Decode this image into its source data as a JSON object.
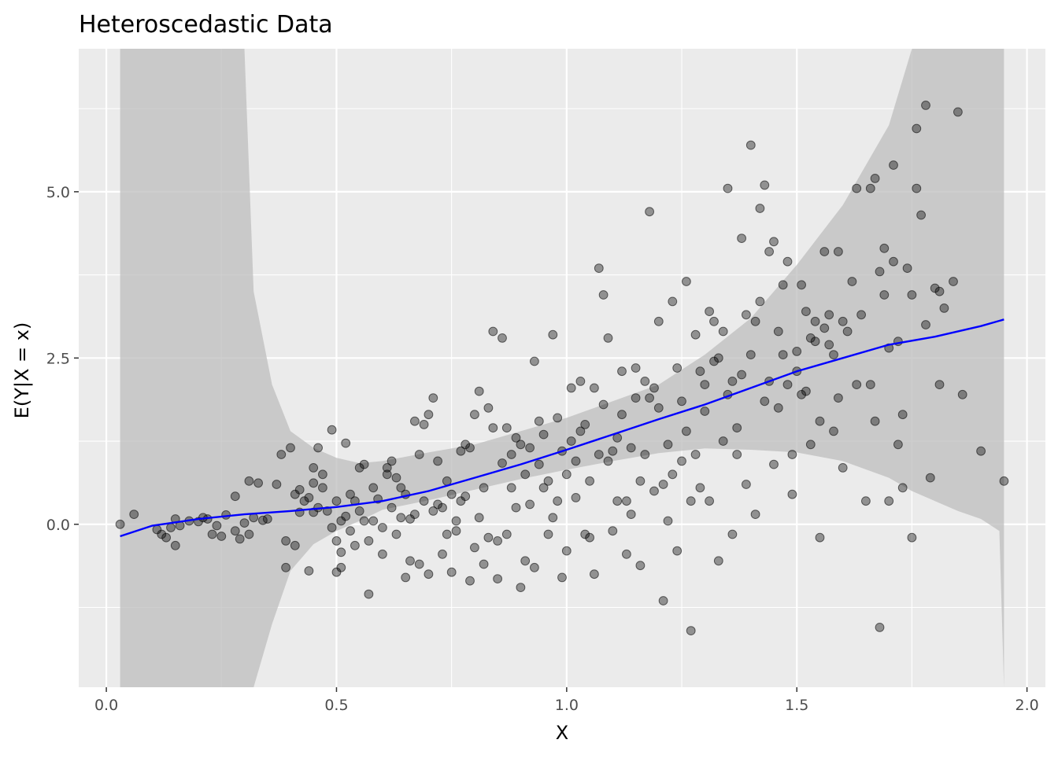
{
  "chart_data": {
    "type": "scatter",
    "title": "Heteroscedastic Data",
    "xlabel": "X",
    "ylabel": "E(Y|X = x)",
    "xlim": [
      -0.06,
      2.04
    ],
    "ylim": [
      -2.45,
      7.15
    ],
    "grid": true,
    "x_ticks": [
      0.0,
      0.5,
      1.0,
      1.5,
      2.0
    ],
    "x_tick_labels": [
      "0.0",
      "0.5",
      "1.0",
      "1.5",
      "2.0"
    ],
    "y_ticks": [
      0.0,
      2.5,
      5.0
    ],
    "y_tick_labels": [
      "0.0",
      "2.5",
      "5.0"
    ],
    "colors": {
      "panel_background": "#EBEBEB",
      "grid": "#FFFFFF",
      "points": "#000000",
      "fit_line": "#0000FF",
      "ribbon": "#BEBEBE"
    },
    "smooth_fit": {
      "x": [
        0.03,
        0.1,
        0.2,
        0.3,
        0.4,
        0.5,
        0.6,
        0.7,
        0.8,
        0.9,
        1.0,
        1.1,
        1.2,
        1.3,
        1.4,
        1.5,
        1.6,
        1.7,
        1.8,
        1.9,
        1.95
      ],
      "y": [
        -0.18,
        -0.02,
        0.08,
        0.15,
        0.2,
        0.26,
        0.35,
        0.5,
        0.7,
        0.9,
        1.12,
        1.35,
        1.58,
        1.8,
        2.05,
        2.3,
        2.5,
        2.7,
        2.82,
        2.98,
        3.08
      ]
    },
    "confidence_band": {
      "x": [
        0.03,
        0.1,
        0.2,
        0.25,
        0.28,
        0.3,
        0.32,
        0.36,
        0.4,
        0.45,
        0.5,
        0.55,
        0.6,
        0.7,
        0.8,
        0.9,
        1.0,
        1.1,
        1.2,
        1.3,
        1.4,
        1.5,
        1.6,
        1.7,
        1.75,
        1.8,
        1.85,
        1.9,
        1.94,
        1.95
      ],
      "lower": [
        -2.45,
        -2.45,
        -2.45,
        -2.45,
        -2.45,
        -2.45,
        -2.45,
        -1.5,
        -0.7,
        -0.3,
        -0.1,
        0.05,
        0.22,
        0.36,
        0.52,
        0.68,
        0.82,
        0.95,
        1.07,
        1.14,
        1.12,
        1.08,
        0.95,
        0.7,
        0.5,
        0.35,
        0.2,
        0.08,
        -0.1,
        -2.45
      ],
      "upper": [
        7.15,
        7.15,
        7.15,
        7.15,
        7.15,
        7.15,
        3.5,
        2.1,
        1.4,
        1.15,
        1.0,
        0.92,
        0.95,
        1.08,
        1.2,
        1.4,
        1.6,
        1.85,
        2.1,
        2.55,
        3.1,
        3.9,
        4.8,
        6.0,
        7.15,
        7.15,
        7.15,
        7.15,
        7.15,
        7.15
      ]
    },
    "points": [
      [
        0.03,
        0.0
      ],
      [
        0.06,
        0.15
      ],
      [
        0.11,
        -0.08
      ],
      [
        0.12,
        -0.15
      ],
      [
        0.13,
        -0.2
      ],
      [
        0.14,
        -0.05
      ],
      [
        0.15,
        0.08
      ],
      [
        0.15,
        -0.32
      ],
      [
        0.16,
        -0.02
      ],
      [
        0.18,
        0.05
      ],
      [
        0.2,
        0.04
      ],
      [
        0.21,
        0.1
      ],
      [
        0.22,
        0.08
      ],
      [
        0.23,
        -0.15
      ],
      [
        0.24,
        -0.02
      ],
      [
        0.25,
        -0.18
      ],
      [
        0.26,
        0.14
      ],
      [
        0.28,
        -0.1
      ],
      [
        0.28,
        0.42
      ],
      [
        0.29,
        -0.22
      ],
      [
        0.3,
        0.02
      ],
      [
        0.31,
        -0.15
      ],
      [
        0.32,
        0.1
      ],
      [
        0.31,
        0.65
      ],
      [
        0.33,
        0.62
      ],
      [
        0.34,
        0.06
      ],
      [
        0.35,
        0.08
      ],
      [
        0.37,
        0.6
      ],
      [
        0.38,
        1.05
      ],
      [
        0.39,
        -0.25
      ],
      [
        0.39,
        -0.65
      ],
      [
        0.4,
        1.15
      ],
      [
        0.41,
        -0.32
      ],
      [
        0.41,
        0.45
      ],
      [
        0.42,
        0.18
      ],
      [
        0.42,
        0.52
      ],
      [
        0.43,
        0.35
      ],
      [
        0.44,
        0.4
      ],
      [
        0.44,
        -0.7
      ],
      [
        0.45,
        0.62
      ],
      [
        0.45,
        0.18
      ],
      [
        0.45,
        0.85
      ],
      [
        0.46,
        0.25
      ],
      [
        0.46,
        1.15
      ],
      [
        0.47,
        0.55
      ],
      [
        0.47,
        0.75
      ],
      [
        0.48,
        0.2
      ],
      [
        0.49,
        1.42
      ],
      [
        0.49,
        -0.05
      ],
      [
        0.5,
        0.35
      ],
      [
        0.5,
        -0.25
      ],
      [
        0.5,
        -0.72
      ],
      [
        0.51,
        0.05
      ],
      [
        0.51,
        -0.65
      ],
      [
        0.51,
        -0.42
      ],
      [
        0.52,
        0.12
      ],
      [
        0.52,
        1.22
      ],
      [
        0.53,
        0.45
      ],
      [
        0.53,
        -0.1
      ],
      [
        0.54,
        0.35
      ],
      [
        0.54,
        -0.32
      ],
      [
        0.55,
        0.85
      ],
      [
        0.55,
        0.2
      ],
      [
        0.56,
        0.05
      ],
      [
        0.56,
        0.9
      ],
      [
        0.57,
        -0.25
      ],
      [
        0.57,
        -1.05
      ],
      [
        0.58,
        0.05
      ],
      [
        0.58,
        0.55
      ],
      [
        0.59,
        0.38
      ],
      [
        0.6,
        -0.05
      ],
      [
        0.6,
        -0.45
      ],
      [
        0.61,
        0.85
      ],
      [
        0.61,
        0.75
      ],
      [
        0.62,
        0.25
      ],
      [
        0.62,
        0.95
      ],
      [
        0.63,
        0.7
      ],
      [
        0.63,
        -0.15
      ],
      [
        0.64,
        0.1
      ],
      [
        0.64,
        0.55
      ],
      [
        0.65,
        -0.8
      ],
      [
        0.65,
        0.45
      ],
      [
        0.66,
        0.08
      ],
      [
        0.66,
        -0.55
      ],
      [
        0.67,
        1.55
      ],
      [
        0.67,
        0.15
      ],
      [
        0.68,
        1.05
      ],
      [
        0.68,
        -0.6
      ],
      [
        0.69,
        0.35
      ],
      [
        0.69,
        1.5
      ],
      [
        0.7,
        1.65
      ],
      [
        0.7,
        -0.75
      ],
      [
        0.71,
        0.2
      ],
      [
        0.71,
        1.9
      ],
      [
        0.72,
        0.3
      ],
      [
        0.72,
        0.95
      ],
      [
        0.73,
        0.25
      ],
      [
        0.73,
        -0.45
      ],
      [
        0.74,
        -0.15
      ],
      [
        0.74,
        0.65
      ],
      [
        0.75,
        0.45
      ],
      [
        0.75,
        -0.72
      ],
      [
        0.76,
        0.05
      ],
      [
        0.76,
        -0.1
      ],
      [
        0.77,
        0.35
      ],
      [
        0.77,
        1.1
      ],
      [
        0.78,
        0.42
      ],
      [
        0.78,
        1.2
      ],
      [
        0.79,
        1.15
      ],
      [
        0.79,
        -0.85
      ],
      [
        0.8,
        1.65
      ],
      [
        0.8,
        -0.35
      ],
      [
        0.81,
        0.1
      ],
      [
        0.81,
        2.0
      ],
      [
        0.82,
        0.55
      ],
      [
        0.82,
        -0.6
      ],
      [
        0.83,
        -0.2
      ],
      [
        0.83,
        1.75
      ],
      [
        0.84,
        2.9
      ],
      [
        0.84,
        1.45
      ],
      [
        0.85,
        -0.82
      ],
      [
        0.85,
        -0.25
      ],
      [
        0.86,
        0.92
      ],
      [
        0.86,
        2.8
      ],
      [
        0.87,
        -0.15
      ],
      [
        0.87,
        1.45
      ],
      [
        0.88,
        0.55
      ],
      [
        0.88,
        1.05
      ],
      [
        0.89,
        1.3
      ],
      [
        0.89,
        0.25
      ],
      [
        0.9,
        -0.95
      ],
      [
        0.9,
        1.2
      ],
      [
        0.91,
        0.75
      ],
      [
        0.91,
        -0.55
      ],
      [
        0.92,
        1.15
      ],
      [
        0.92,
        0.3
      ],
      [
        0.93,
        2.45
      ],
      [
        0.93,
        -0.65
      ],
      [
        0.94,
        0.9
      ],
      [
        0.94,
        1.55
      ],
      [
        0.95,
        1.35
      ],
      [
        0.95,
        0.55
      ],
      [
        0.96,
        0.65
      ],
      [
        0.96,
        -0.15
      ],
      [
        0.97,
        0.1
      ],
      [
        0.97,
        2.85
      ],
      [
        0.98,
        1.6
      ],
      [
        0.98,
        0.35
      ],
      [
        0.99,
        1.1
      ],
      [
        0.99,
        -0.8
      ],
      [
        1.0,
        0.75
      ],
      [
        1.0,
        -0.4
      ],
      [
        1.01,
        1.25
      ],
      [
        1.01,
        2.05
      ],
      [
        1.02,
        0.4
      ],
      [
        1.02,
        0.95
      ],
      [
        1.03,
        2.15
      ],
      [
        1.03,
        1.4
      ],
      [
        1.04,
        1.5
      ],
      [
        1.04,
        -0.15
      ],
      [
        1.05,
        0.65
      ],
      [
        1.05,
        -0.2
      ],
      [
        1.06,
        2.05
      ],
      [
        1.06,
        -0.75
      ],
      [
        1.07,
        1.05
      ],
      [
        1.07,
        3.85
      ],
      [
        1.08,
        3.45
      ],
      [
        1.08,
        1.8
      ],
      [
        1.09,
        0.95
      ],
      [
        1.09,
        2.8
      ],
      [
        1.1,
        1.1
      ],
      [
        1.1,
        -0.1
      ],
      [
        1.11,
        1.3
      ],
      [
        1.11,
        0.35
      ],
      [
        1.12,
        2.3
      ],
      [
        1.12,
        1.65
      ],
      [
        1.13,
        0.35
      ],
      [
        1.13,
        -0.45
      ],
      [
        1.14,
        1.15
      ],
      [
        1.14,
        0.15
      ],
      [
        1.15,
        2.35
      ],
      [
        1.15,
        1.9
      ],
      [
        1.16,
        0.65
      ],
      [
        1.16,
        -0.62
      ],
      [
        1.17,
        2.15
      ],
      [
        1.17,
        1.05
      ],
      [
        1.18,
        1.9
      ],
      [
        1.18,
        4.7
      ],
      [
        1.19,
        2.05
      ],
      [
        1.19,
        0.5
      ],
      [
        1.2,
        1.75
      ],
      [
        1.2,
        3.05
      ],
      [
        1.21,
        0.6
      ],
      [
        1.21,
        -1.15
      ],
      [
        1.22,
        1.2
      ],
      [
        1.22,
        0.05
      ],
      [
        1.23,
        3.35
      ],
      [
        1.23,
        0.75
      ],
      [
        1.24,
        2.35
      ],
      [
        1.24,
        -0.4
      ],
      [
        1.25,
        1.85
      ],
      [
        1.25,
        0.95
      ],
      [
        1.26,
        3.65
      ],
      [
        1.26,
        1.4
      ],
      [
        1.27,
        0.35
      ],
      [
        1.27,
        -1.6
      ],
      [
        1.28,
        2.85
      ],
      [
        1.28,
        1.05
      ],
      [
        1.29,
        2.3
      ],
      [
        1.29,
        0.55
      ],
      [
        1.3,
        2.1
      ],
      [
        1.3,
        1.7
      ],
      [
        1.31,
        3.2
      ],
      [
        1.31,
        0.35
      ],
      [
        1.32,
        2.45
      ],
      [
        1.32,
        3.05
      ],
      [
        1.33,
        2.5
      ],
      [
        1.33,
        -0.55
      ],
      [
        1.34,
        2.9
      ],
      [
        1.34,
        1.25
      ],
      [
        1.35,
        1.95
      ],
      [
        1.35,
        5.05
      ],
      [
        1.36,
        2.15
      ],
      [
        1.36,
        -0.15
      ],
      [
        1.37,
        1.45
      ],
      [
        1.37,
        1.05
      ],
      [
        1.38,
        4.3
      ],
      [
        1.38,
        2.25
      ],
      [
        1.39,
        3.15
      ],
      [
        1.39,
        0.6
      ],
      [
        1.4,
        2.55
      ],
      [
        1.4,
        5.7
      ],
      [
        1.41,
        3.05
      ],
      [
        1.41,
        0.15
      ],
      [
        1.42,
        3.35
      ],
      [
        1.42,
        4.75
      ],
      [
        1.43,
        5.1
      ],
      [
        1.43,
        1.85
      ],
      [
        1.44,
        4.1
      ],
      [
        1.44,
        2.15
      ],
      [
        1.45,
        4.25
      ],
      [
        1.45,
        0.9
      ],
      [
        1.46,
        2.9
      ],
      [
        1.46,
        1.75
      ],
      [
        1.47,
        2.55
      ],
      [
        1.47,
        3.6
      ],
      [
        1.48,
        2.1
      ],
      [
        1.48,
        3.95
      ],
      [
        1.49,
        0.45
      ],
      [
        1.49,
        1.05
      ],
      [
        1.5,
        2.3
      ],
      [
        1.5,
        2.6
      ],
      [
        1.51,
        3.6
      ],
      [
        1.51,
        1.95
      ],
      [
        1.52,
        2.0
      ],
      [
        1.52,
        3.2
      ],
      [
        1.53,
        2.8
      ],
      [
        1.53,
        1.2
      ],
      [
        1.54,
        2.75
      ],
      [
        1.54,
        3.05
      ],
      [
        1.55,
        -0.2
      ],
      [
        1.55,
        1.55
      ],
      [
        1.56,
        2.95
      ],
      [
        1.56,
        4.1
      ],
      [
        1.57,
        2.7
      ],
      [
        1.57,
        3.15
      ],
      [
        1.58,
        1.4
      ],
      [
        1.58,
        2.55
      ],
      [
        1.59,
        4.1
      ],
      [
        1.59,
        1.9
      ],
      [
        1.6,
        3.05
      ],
      [
        1.6,
        0.85
      ],
      [
        1.61,
        2.9
      ],
      [
        1.62,
        3.65
      ],
      [
        1.63,
        2.1
      ],
      [
        1.63,
        5.05
      ],
      [
        1.64,
        3.15
      ],
      [
        1.65,
        0.35
      ],
      [
        1.66,
        2.1
      ],
      [
        1.66,
        5.05
      ],
      [
        1.67,
        5.2
      ],
      [
        1.67,
        1.55
      ],
      [
        1.68,
        3.8
      ],
      [
        1.68,
        -1.55
      ],
      [
        1.69,
        4.15
      ],
      [
        1.69,
        3.45
      ],
      [
        1.7,
        2.65
      ],
      [
        1.7,
        0.35
      ],
      [
        1.71,
        3.95
      ],
      [
        1.71,
        5.4
      ],
      [
        1.72,
        2.75
      ],
      [
        1.72,
        1.2
      ],
      [
        1.73,
        1.65
      ],
      [
        1.73,
        0.55
      ],
      [
        1.74,
        3.85
      ],
      [
        1.75,
        3.45
      ],
      [
        1.75,
        -0.2
      ],
      [
        1.76,
        5.95
      ],
      [
        1.76,
        5.05
      ],
      [
        1.77,
        4.65
      ],
      [
        1.78,
        3.0
      ],
      [
        1.78,
        6.3
      ],
      [
        1.79,
        0.7
      ],
      [
        1.8,
        3.55
      ],
      [
        1.81,
        2.1
      ],
      [
        1.81,
        3.5
      ],
      [
        1.82,
        3.25
      ],
      [
        1.84,
        3.65
      ],
      [
        1.85,
        6.2
      ],
      [
        1.86,
        1.95
      ],
      [
        1.9,
        1.1
      ],
      [
        1.95,
        0.65
      ]
    ]
  }
}
